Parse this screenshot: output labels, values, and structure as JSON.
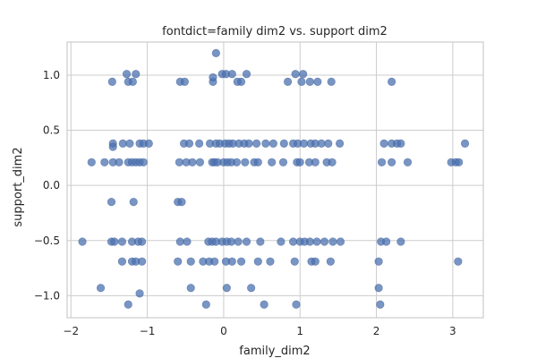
{
  "chart_data": {
    "type": "scatter",
    "title": "fontdict=family dim2 vs. support dim2",
    "xlabel": "family_dim2",
    "ylabel": "support_dim2",
    "xlim": [
      -2.05,
      3.4
    ],
    "ylim": [
      -1.2,
      1.3
    ],
    "xticks": [
      -2,
      -1,
      0,
      1,
      2,
      3
    ],
    "yticks": [
      -1.0,
      -0.5,
      0.0,
      0.5,
      1.0
    ],
    "xtick_labels": [
      "−2",
      "−1",
      "0",
      "1",
      "2",
      "3"
    ],
    "ytick_labels": [
      "−1.0",
      "−0.5",
      "0.0",
      "0.5",
      "1.0"
    ],
    "grid": true,
    "color": "#4c72b0",
    "points": [
      [
        -1.27,
        1.01
      ],
      [
        -1.15,
        1.01
      ],
      [
        -1.25,
        0.94
      ],
      [
        -1.19,
        0.94
      ],
      [
        -1.46,
        0.94
      ],
      [
        -0.57,
        0.94
      ],
      [
        -0.51,
        0.94
      ],
      [
        -0.1,
        1.2
      ],
      [
        -0.02,
        1.01
      ],
      [
        0.03,
        1.01
      ],
      [
        0.11,
        1.01
      ],
      [
        0.3,
        1.01
      ],
      [
        0.23,
        0.94
      ],
      [
        0.18,
        0.94
      ],
      [
        -0.14,
        0.94
      ],
      [
        -0.14,
        0.98
      ],
      [
        0.94,
        1.01
      ],
      [
        1.04,
        1.01
      ],
      [
        0.84,
        0.94
      ],
      [
        1.02,
        0.94
      ],
      [
        1.13,
        0.94
      ],
      [
        1.23,
        0.94
      ],
      [
        1.41,
        0.94
      ],
      [
        2.2,
        0.94
      ],
      [
        -1.45,
        0.38
      ],
      [
        -1.45,
        0.35
      ],
      [
        -1.32,
        0.38
      ],
      [
        -1.23,
        0.38
      ],
      [
        -1.1,
        0.38
      ],
      [
        -1.05,
        0.38
      ],
      [
        -0.98,
        0.38
      ],
      [
        -0.52,
        0.38
      ],
      [
        -0.45,
        0.38
      ],
      [
        -0.32,
        0.38
      ],
      [
        -0.18,
        0.38
      ],
      [
        -0.1,
        0.38
      ],
      [
        -0.05,
        0.38
      ],
      [
        0.02,
        0.38
      ],
      [
        0.07,
        0.38
      ],
      [
        0.12,
        0.38
      ],
      [
        0.2,
        0.38
      ],
      [
        0.27,
        0.38
      ],
      [
        0.33,
        0.38
      ],
      [
        0.43,
        0.38
      ],
      [
        0.55,
        0.38
      ],
      [
        0.65,
        0.38
      ],
      [
        0.79,
        0.38
      ],
      [
        0.91,
        0.38
      ],
      [
        0.97,
        0.38
      ],
      [
        1.05,
        0.38
      ],
      [
        1.14,
        0.38
      ],
      [
        1.2,
        0.38
      ],
      [
        1.28,
        0.38
      ],
      [
        1.37,
        0.38
      ],
      [
        1.52,
        0.38
      ],
      [
        2.1,
        0.38
      ],
      [
        2.2,
        0.38
      ],
      [
        2.27,
        0.38
      ],
      [
        2.32,
        0.38
      ],
      [
        3.16,
        0.38
      ],
      [
        -1.73,
        0.21
      ],
      [
        -1.56,
        0.21
      ],
      [
        -1.45,
        0.21
      ],
      [
        -1.37,
        0.21
      ],
      [
        -1.25,
        0.21
      ],
      [
        -1.2,
        0.21
      ],
      [
        -1.15,
        0.21
      ],
      [
        -1.1,
        0.21
      ],
      [
        -1.05,
        0.21
      ],
      [
        -0.58,
        0.21
      ],
      [
        -0.49,
        0.21
      ],
      [
        -0.41,
        0.21
      ],
      [
        -0.31,
        0.21
      ],
      [
        -0.15,
        0.21
      ],
      [
        -0.12,
        0.21
      ],
      [
        -0.08,
        0.21
      ],
      [
        0.0,
        0.21
      ],
      [
        0.05,
        0.21
      ],
      [
        0.1,
        0.21
      ],
      [
        0.17,
        0.21
      ],
      [
        0.28,
        0.21
      ],
      [
        0.4,
        0.21
      ],
      [
        0.45,
        0.21
      ],
      [
        0.63,
        0.21
      ],
      [
        0.78,
        0.21
      ],
      [
        0.96,
        0.21
      ],
      [
        1.0,
        0.21
      ],
      [
        1.12,
        0.21
      ],
      [
        1.2,
        0.21
      ],
      [
        1.35,
        0.21
      ],
      [
        1.42,
        0.21
      ],
      [
        2.07,
        0.21
      ],
      [
        2.2,
        0.21
      ],
      [
        2.41,
        0.21
      ],
      [
        2.98,
        0.21
      ],
      [
        3.04,
        0.21
      ],
      [
        3.08,
        0.21
      ],
      [
        -1.47,
        -0.15
      ],
      [
        -1.18,
        -0.15
      ],
      [
        -0.6,
        -0.15
      ],
      [
        -0.55,
        -0.15
      ],
      [
        -1.85,
        -0.51
      ],
      [
        -1.47,
        -0.51
      ],
      [
        -1.43,
        -0.51
      ],
      [
        -1.33,
        -0.51
      ],
      [
        -1.2,
        -0.51
      ],
      [
        -1.12,
        -0.51
      ],
      [
        -1.07,
        -0.51
      ],
      [
        -0.57,
        -0.51
      ],
      [
        -0.48,
        -0.51
      ],
      [
        -0.2,
        -0.51
      ],
      [
        -0.15,
        -0.51
      ],
      [
        -0.1,
        -0.51
      ],
      [
        -0.02,
        -0.51
      ],
      [
        0.04,
        -0.51
      ],
      [
        0.1,
        -0.51
      ],
      [
        0.19,
        -0.51
      ],
      [
        0.3,
        -0.51
      ],
      [
        0.48,
        -0.51
      ],
      [
        0.75,
        -0.51
      ],
      [
        0.91,
        -0.51
      ],
      [
        1.0,
        -0.51
      ],
      [
        1.06,
        -0.51
      ],
      [
        1.13,
        -0.51
      ],
      [
        1.22,
        -0.51
      ],
      [
        1.32,
        -0.51
      ],
      [
        1.43,
        -0.51
      ],
      [
        1.53,
        -0.51
      ],
      [
        2.06,
        -0.51
      ],
      [
        2.13,
        -0.51
      ],
      [
        2.32,
        -0.51
      ],
      [
        -1.33,
        -0.69
      ],
      [
        -1.2,
        -0.69
      ],
      [
        -1.15,
        -0.69
      ],
      [
        -1.07,
        -0.69
      ],
      [
        -0.6,
        -0.69
      ],
      [
        -0.43,
        -0.69
      ],
      [
        -0.27,
        -0.69
      ],
      [
        -0.19,
        -0.69
      ],
      [
        -0.12,
        -0.69
      ],
      [
        0.03,
        -0.69
      ],
      [
        0.11,
        -0.69
      ],
      [
        0.23,
        -0.69
      ],
      [
        0.45,
        -0.69
      ],
      [
        0.61,
        -0.69
      ],
      [
        0.93,
        -0.69
      ],
      [
        1.15,
        -0.69
      ],
      [
        1.2,
        -0.69
      ],
      [
        1.4,
        -0.69
      ],
      [
        2.03,
        -0.69
      ],
      [
        3.07,
        -0.69
      ],
      [
        -1.61,
        -0.93
      ],
      [
        -1.1,
        -0.98
      ],
      [
        -0.43,
        -0.93
      ],
      [
        0.04,
        -0.93
      ],
      [
        0.36,
        -0.93
      ],
      [
        2.03,
        -0.93
      ],
      [
        -1.25,
        -1.08
      ],
      [
        -0.23,
        -1.08
      ],
      [
        0.53,
        -1.08
      ],
      [
        0.95,
        -1.08
      ],
      [
        2.05,
        -1.08
      ]
    ]
  }
}
